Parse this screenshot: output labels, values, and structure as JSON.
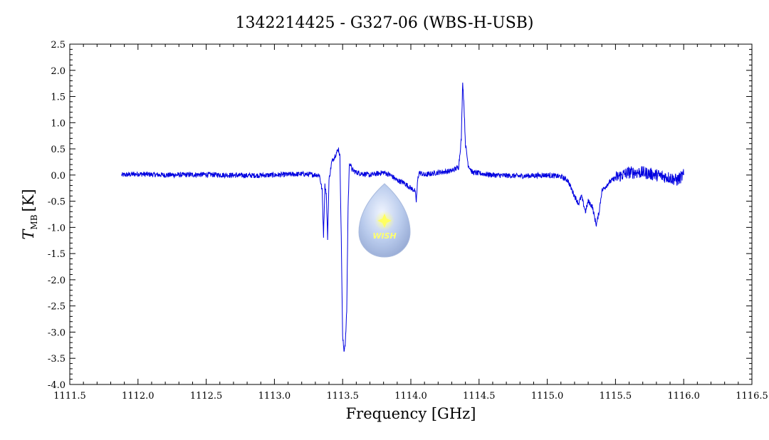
{
  "chart_data": {
    "type": "line",
    "title": "1342214425 - G327-06 (WBS-H-USB)",
    "xlabel": "Frequency [GHz]",
    "ylabel_main": "T",
    "ylabel_sub": "MB",
    "ylabel_unit": "[K]",
    "xlim": [
      1111.5,
      1116.5
    ],
    "ylim": [
      -4.0,
      2.5
    ],
    "x_ticks": [
      "1111.5",
      "1112.0",
      "1112.5",
      "1113.0",
      "1113.5",
      "1114.0",
      "1114.5",
      "1115.0",
      "1115.5",
      "1116.0",
      "1116.5"
    ],
    "y_ticks": [
      "2.5",
      "2.0",
      "1.5",
      "1.0",
      "0.5",
      "0.0",
      "-0.5",
      "-1.0",
      "-1.5",
      "-2.0",
      "-2.5",
      "-3.0",
      "-3.5",
      "-4.0"
    ],
    "grid": false,
    "series": [
      {
        "color": "#0000e0",
        "points": [
          [
            1111.88,
            0.0
          ],
          [
            1112.0,
            0.02
          ],
          [
            1112.2,
            0.0
          ],
          [
            1112.5,
            0.01
          ],
          [
            1112.8,
            -0.01
          ],
          [
            1113.0,
            0.0
          ],
          [
            1113.2,
            0.02
          ],
          [
            1113.33,
            0.0
          ],
          [
            1113.35,
            -0.3
          ],
          [
            1113.36,
            -1.15
          ],
          [
            1113.37,
            -0.2
          ],
          [
            1113.38,
            -0.35
          ],
          [
            1113.39,
            -1.2
          ],
          [
            1113.4,
            -0.1
          ],
          [
            1113.42,
            0.25
          ],
          [
            1113.45,
            0.4
          ],
          [
            1113.47,
            0.5
          ],
          [
            1113.48,
            0.35
          ],
          [
            1113.49,
            -1.2
          ],
          [
            1113.5,
            -3.1
          ],
          [
            1113.51,
            -3.35
          ],
          [
            1113.52,
            -3.2
          ],
          [
            1113.53,
            -2.6
          ],
          [
            1113.54,
            -0.6
          ],
          [
            1113.55,
            0.25
          ],
          [
            1113.57,
            0.1
          ],
          [
            1113.6,
            0.05
          ],
          [
            1113.7,
            0.0
          ],
          [
            1113.8,
            0.05
          ],
          [
            1113.85,
            0.0
          ],
          [
            1113.9,
            -0.1
          ],
          [
            1113.95,
            -0.15
          ],
          [
            1114.0,
            -0.25
          ],
          [
            1114.03,
            -0.3
          ],
          [
            1114.04,
            -0.5
          ],
          [
            1114.05,
            -0.1
          ],
          [
            1114.06,
            0.05
          ],
          [
            1114.1,
            0.0
          ],
          [
            1114.2,
            0.05
          ],
          [
            1114.3,
            0.08
          ],
          [
            1114.35,
            0.15
          ],
          [
            1114.37,
            0.7
          ],
          [
            1114.38,
            1.8
          ],
          [
            1114.39,
            1.3
          ],
          [
            1114.4,
            0.6
          ],
          [
            1114.42,
            0.2
          ],
          [
            1114.45,
            0.05
          ],
          [
            1114.6,
            0.0
          ],
          [
            1114.8,
            -0.02
          ],
          [
            1115.0,
            0.0
          ],
          [
            1115.1,
            -0.03
          ],
          [
            1115.15,
            -0.1
          ],
          [
            1115.2,
            -0.4
          ],
          [
            1115.23,
            -0.55
          ],
          [
            1115.25,
            -0.4
          ],
          [
            1115.28,
            -0.7
          ],
          [
            1115.3,
            -0.5
          ],
          [
            1115.33,
            -0.6
          ],
          [
            1115.35,
            -0.85
          ],
          [
            1115.36,
            -0.95
          ],
          [
            1115.38,
            -0.7
          ],
          [
            1115.4,
            -0.3
          ],
          [
            1115.45,
            -0.15
          ],
          [
            1115.5,
            -0.05
          ],
          [
            1115.6,
            0.05
          ],
          [
            1115.7,
            0.05
          ],
          [
            1115.8,
            0.0
          ],
          [
            1115.9,
            -0.05
          ],
          [
            1115.95,
            -0.1
          ],
          [
            1116.0,
            0.0
          ]
        ]
      }
    ]
  },
  "watermark": {
    "logo_text": "WISH",
    "icon": "wish-logo-drop-icon"
  }
}
